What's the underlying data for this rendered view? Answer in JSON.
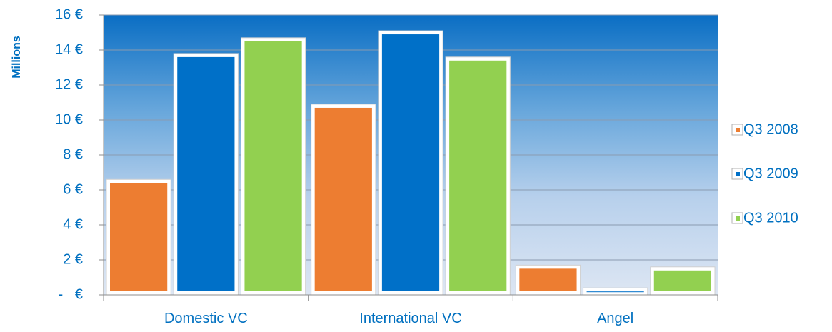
{
  "chart_data": {
    "type": "bar",
    "ylabel": "Millions",
    "categories": [
      "Domestic VC",
      "International VC",
      "Angel"
    ],
    "series": [
      {
        "name": "Q3 2008",
        "values": [
          6.6,
          10.9,
          1.7
        ],
        "color": "#ed7d31"
      },
      {
        "name": "Q3 2009",
        "values": [
          13.8,
          15.1,
          0.4
        ],
        "color": "#0070c8"
      },
      {
        "name": "Q3 2010",
        "values": [
          14.7,
          13.6,
          1.6
        ],
        "color": "#92d050"
      }
    ],
    "ylim": [
      0,
      16
    ],
    "yticks": [
      0,
      2,
      4,
      6,
      8,
      10,
      12,
      14,
      16
    ],
    "ytick_labels": [
      "-   €",
      "2 €",
      "4 €",
      "6 €",
      "8 €",
      "10 €",
      "12 €",
      "14 €",
      "16 €"
    ],
    "grid": true,
    "legend_position": "right"
  }
}
